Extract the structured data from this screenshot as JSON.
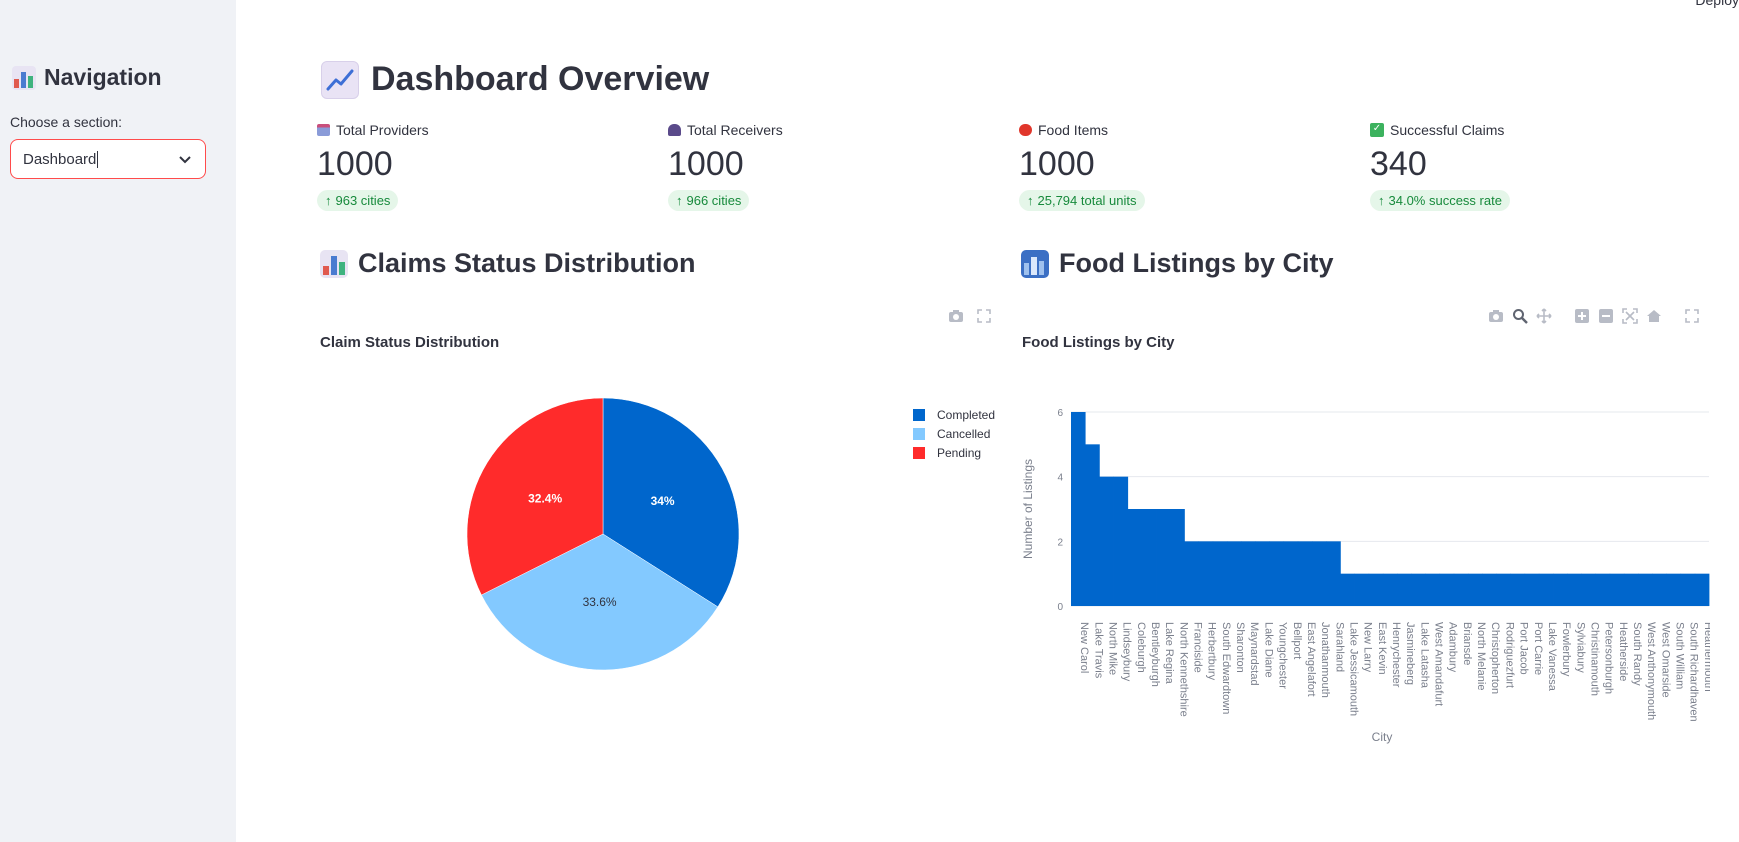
{
  "topbar": {
    "deploy_label": "Deploy"
  },
  "sidebar": {
    "title": "Navigation",
    "select_label": "Choose a section:",
    "select_value": "Dashboard"
  },
  "page": {
    "title": "Dashboard Overview"
  },
  "metrics": [
    {
      "label": "Total Providers",
      "value": "1000",
      "delta": "963 cities",
      "icon": "building-icon"
    },
    {
      "label": "Total Receivers",
      "value": "1000",
      "delta": "966 cities",
      "icon": "people-icon"
    },
    {
      "label": "Food Items",
      "value": "1000",
      "delta": "25,794 total units",
      "icon": "apple-icon"
    },
    {
      "label": "Successful Claims",
      "value": "340",
      "delta": "34.0% success rate",
      "icon": "check-box-icon"
    }
  ],
  "sections": {
    "claims": "Claims Status Distribution",
    "listings": "Food Listings by City"
  },
  "colors": {
    "completed": "#0066cc",
    "cancelled": "#83c9ff",
    "pending": "#ff2b2b",
    "delta_text": "#178a3c",
    "delta_bg": "#e5f6e9",
    "accent": "#ff4b4b"
  },
  "chart_data": [
    {
      "type": "pie",
      "title": "Claim Status Distribution",
      "labels": [
        "Completed",
        "Cancelled",
        "Pending"
      ],
      "values": [
        34.0,
        33.6,
        32.4
      ],
      "slice_labels": [
        "34%",
        "33.6%",
        "32.4%"
      ],
      "legend": "right"
    },
    {
      "type": "bar",
      "title": "Food Listings by City",
      "xlabel": "City",
      "ylabel": "Number of Listings",
      "ylim": [
        0,
        6
      ],
      "yticks": [
        0,
        2,
        4,
        6
      ],
      "grid": true,
      "categories": [
        "New Carol",
        "Lake Travis",
        "North Mike",
        "Lindseybury",
        "Coleburgh",
        "Bentleyburgh",
        "Lake Regina",
        "North Kennethshire",
        "Franciside",
        "Herbertbury",
        "South Edwardtown",
        "Sharonton",
        "Maynardstad",
        "Lake Diane",
        "Youngchester",
        "Bellport",
        "East Angelafort",
        "Jonathanmouth",
        "Sarahland",
        "Lake Jessicamouth",
        "New Larry",
        "East Kevin",
        "Henrychester",
        "Jasmineberg",
        "Lake Latasha",
        "West Amandafurt",
        "Adambury",
        "Briansde",
        "North Melanie",
        "Christopherton",
        "Rodriguezfurt",
        "Port Jacob",
        "Port Carrie",
        "Lake Vanessa",
        "Fowlerbury",
        "Sylviabury",
        "Christinamouth",
        "Petersonburgh",
        "Heatherside",
        "South Randy",
        "West Anthonymouth",
        "West Omarside",
        "South William",
        "South Richardhaven",
        "Heathermouth"
      ],
      "values": [
        6,
        5,
        4,
        4,
        3,
        3,
        3,
        3,
        2,
        2,
        2,
        2,
        2,
        2,
        2,
        2,
        2,
        2,
        2,
        1,
        1,
        1,
        1,
        1,
        1,
        1,
        1,
        1,
        1,
        1,
        1,
        1,
        1,
        1,
        1,
        1,
        1,
        1,
        1,
        1,
        1,
        1,
        1,
        1,
        1
      ]
    }
  ]
}
